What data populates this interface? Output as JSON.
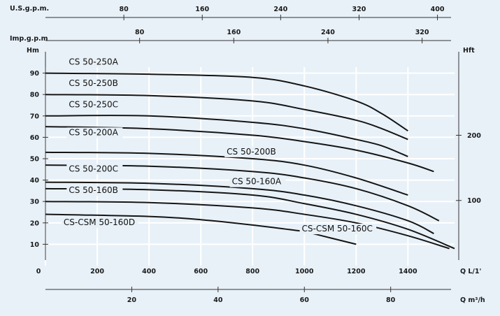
{
  "chart_data": {
    "type": "line",
    "xlabel": "Q L/1'",
    "ylabel": "Hm",
    "secondary_ylabel": "Hft",
    "xlim": [
      0,
      1580
    ],
    "ylim": [
      0,
      100
    ],
    "grid": true,
    "legend": "inline-labels",
    "x_ticks": [
      "0",
      "200",
      "400",
      "600",
      "800",
      "1000",
      "1200",
      "1400"
    ],
    "y_ticks": [
      "10",
      "20",
      "30",
      "40",
      "50",
      "60",
      "70",
      "80",
      "90"
    ],
    "hft_ticks": [
      "100",
      "200"
    ],
    "top_axes": [
      {
        "label": "U.S.g.p.m.",
        "ticks": [
          "80",
          "160",
          "240",
          "320",
          "400"
        ]
      },
      {
        "label": "Imp.g.p.m",
        "ticks": [
          "80",
          "160",
          "240",
          "320"
        ]
      }
    ],
    "bottom_axis": {
      "label": "Q m³/h",
      "ticks": [
        "20",
        "40",
        "60",
        "80"
      ]
    },
    "series": [
      {
        "name": "CS 50-250A",
        "x": [
          0,
          400,
          800,
          1000,
          1200,
          1300,
          1400
        ],
        "y": [
          90,
          89.5,
          88,
          84,
          77,
          71,
          63
        ]
      },
      {
        "name": "CS 50-250B",
        "x": [
          0,
          400,
          800,
          1000,
          1200,
          1300,
          1400
        ],
        "y": [
          80,
          79.5,
          77,
          73,
          68,
          64,
          59
        ]
      },
      {
        "name": "CS 50-250C",
        "x": [
          0,
          400,
          800,
          1000,
          1200,
          1300,
          1400
        ],
        "y": [
          70,
          70,
          67,
          64,
          59,
          56,
          51
        ]
      },
      {
        "name": "CS 50-200A",
        "x": [
          0,
          400,
          800,
          1000,
          1200,
          1400,
          1500
        ],
        "y": [
          65,
          64,
          61,
          58,
          54,
          48,
          44
        ]
      },
      {
        "name": "CS 50-200B",
        "x": [
          0,
          400,
          800,
          1000,
          1200,
          1400
        ],
        "y": [
          53,
          52.5,
          50,
          47,
          41,
          33
        ]
      },
      {
        "name": "CS 50-200C",
        "x": [
          0,
          400,
          800,
          1000,
          1200,
          1400,
          1520
        ],
        "y": [
          47,
          46.5,
          44,
          41,
          36,
          28,
          21
        ]
      },
      {
        "name": "CS 50-160A",
        "x": [
          0,
          400,
          800,
          1000,
          1200,
          1400,
          1500
        ],
        "y": [
          39,
          38.5,
          36,
          33,
          28,
          21,
          15
        ]
      },
      {
        "name": "CS 50-160B",
        "x": [
          0,
          400,
          800,
          1000,
          1200,
          1400,
          1580
        ],
        "y": [
          36,
          35.5,
          33,
          29,
          24,
          17,
          8
        ]
      },
      {
        "name": "CS-CSM 50-160C",
        "x": [
          0,
          400,
          800,
          1000,
          1200,
          1400,
          1560
        ],
        "y": [
          30,
          29.5,
          27,
          24,
          20,
          14,
          8
        ]
      },
      {
        "name": "CS-CSM 50-160D",
        "x": [
          0,
          400,
          600,
          800,
          1000
        ],
        "y": [
          24,
          23,
          21.5,
          19,
          16
        ]
      },
      {
        "name": "",
        "x": [
          1000,
          1100,
          1200
        ],
        "y": [
          16,
          13,
          10
        ]
      }
    ],
    "colors": {
      "curve": "#151515",
      "grid": "#ffffff",
      "axis": "#333333",
      "background": "#e8f1f8"
    }
  }
}
